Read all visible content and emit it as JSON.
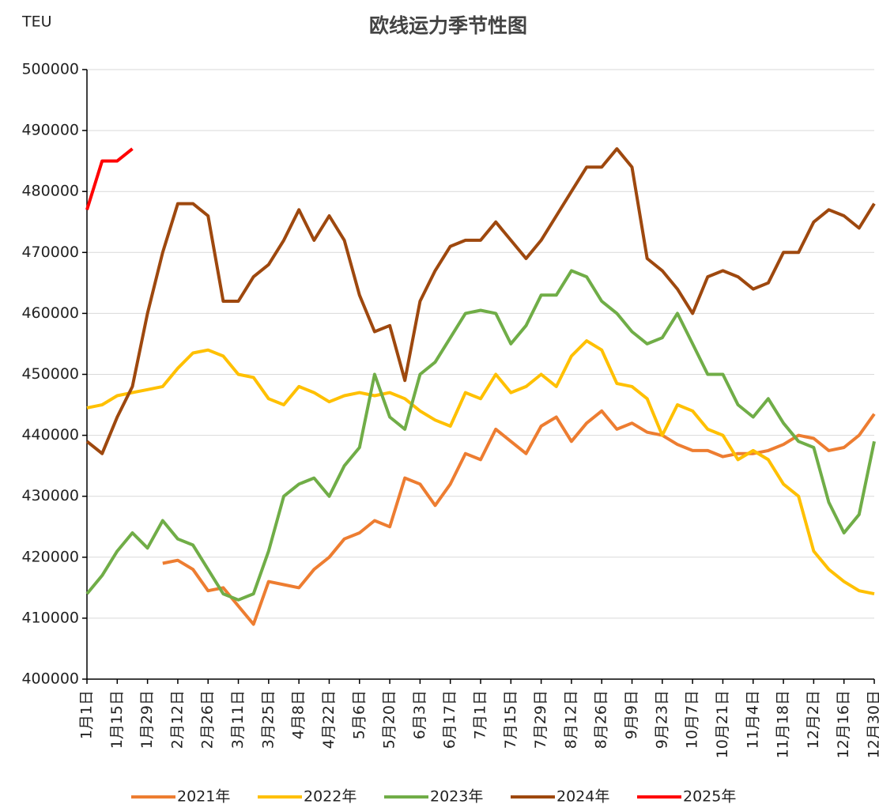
{
  "chart_data": {
    "type": "line",
    "title": "欧线运力季节性图",
    "y_label": "TEU",
    "categories": [
      "1月1日",
      null,
      "1月15日",
      null,
      "1月29日",
      null,
      "2月12日",
      null,
      "2月26日",
      null,
      "3月11日",
      null,
      "3月25日",
      null,
      "4月8日",
      null,
      "4月22日",
      null,
      "5月6日",
      null,
      "5月20日",
      null,
      "6月3日",
      null,
      "6月17日",
      null,
      "7月1日",
      null,
      "7月15日",
      null,
      "7月29日",
      null,
      "8月12日",
      null,
      "8月26日",
      null,
      "9月9日",
      null,
      "9月23日",
      null,
      "10月7日",
      null,
      "10月21日",
      null,
      "11月4日",
      null,
      "11月18日",
      null,
      "12月2日",
      null,
      "12月16日",
      null,
      "12月30日"
    ],
    "ylim": [
      400000,
      500000
    ],
    "yticks": [
      400000,
      410000,
      420000,
      430000,
      440000,
      450000,
      460000,
      470000,
      480000,
      490000,
      500000
    ],
    "grid": true,
    "legend": "bottom",
    "series": [
      {
        "name": "2021年",
        "color": "#ed7d31",
        "values": [
          null,
          null,
          null,
          null,
          null,
          419000,
          419500,
          418000,
          414500,
          415000,
          412000,
          409000,
          416000,
          415500,
          415000,
          418000,
          420000,
          423000,
          424000,
          426000,
          425000,
          433000,
          432000,
          428500,
          432000,
          437000,
          436000,
          441000,
          439000,
          437000,
          441500,
          443000,
          439000,
          442000,
          444000,
          441000,
          442000,
          440500,
          440000,
          438500,
          437500,
          437500,
          436500,
          437000,
          437000,
          437500,
          438500,
          440000,
          439500,
          437500,
          438000,
          440000,
          443500
        ]
      },
      {
        "name": "2022年",
        "color": "#ffc000",
        "values": [
          444500,
          445000,
          446500,
          447000,
          447500,
          448000,
          451000,
          453500,
          454000,
          453000,
          450000,
          449500,
          446000,
          445000,
          448000,
          447000,
          445500,
          446500,
          447000,
          446500,
          447000,
          446000,
          444000,
          442500,
          441500,
          447000,
          446000,
          450000,
          447000,
          448000,
          450000,
          448000,
          453000,
          455500,
          454000,
          448500,
          448000,
          446000,
          440000,
          445000,
          444000,
          441000,
          440000,
          436000,
          437500,
          436000,
          432000,
          430000,
          421000,
          418000,
          416000,
          414500,
          414000
        ]
      },
      {
        "name": "2023年",
        "color": "#70ad47",
        "values": [
          414000,
          417000,
          421000,
          424000,
          421500,
          426000,
          423000,
          422000,
          418000,
          414000,
          413000,
          414000,
          421000,
          430000,
          432000,
          433000,
          430000,
          435000,
          438000,
          450000,
          443000,
          441000,
          450000,
          452000,
          456000,
          460000,
          460500,
          460000,
          455000,
          458000,
          463000,
          463000,
          467000,
          466000,
          462000,
          460000,
          457000,
          455000,
          456000,
          460000,
          455000,
          450000,
          450000,
          445000,
          443000,
          446000,
          442000,
          439000,
          438000,
          429000,
          424000,
          427000,
          439000
        ]
      },
      {
        "name": "2024年",
        "color": "#9e480e",
        "values": [
          439000,
          437000,
          443000,
          448000,
          460000,
          470000,
          478000,
          478000,
          476000,
          462000,
          462000,
          466000,
          468000,
          472000,
          477000,
          472000,
          476000,
          472000,
          463000,
          457000,
          458000,
          449000,
          462000,
          467000,
          471000,
          472000,
          472000,
          475000,
          472000,
          469000,
          472000,
          476000,
          480000,
          484000,
          484000,
          487000,
          484000,
          469000,
          467000,
          464000,
          460000,
          466000,
          467000,
          466000,
          464000,
          465000,
          470000,
          470000,
          475000,
          477000,
          476000,
          474000,
          478000
        ]
      },
      {
        "name": "2025年",
        "color": "#ff0000",
        "values": [
          477000,
          485000,
          485000,
          487000,
          null,
          null,
          null,
          null,
          null,
          null,
          null,
          null,
          null,
          null,
          null,
          null,
          null,
          null,
          null,
          null,
          null,
          null,
          null,
          null,
          null,
          null,
          null,
          null,
          null,
          null,
          null,
          null,
          null,
          null,
          null,
          null,
          null,
          null,
          null,
          null,
          null,
          null,
          null,
          null,
          null,
          null,
          null,
          null,
          null,
          null,
          null,
          null,
          null
        ]
      }
    ]
  }
}
